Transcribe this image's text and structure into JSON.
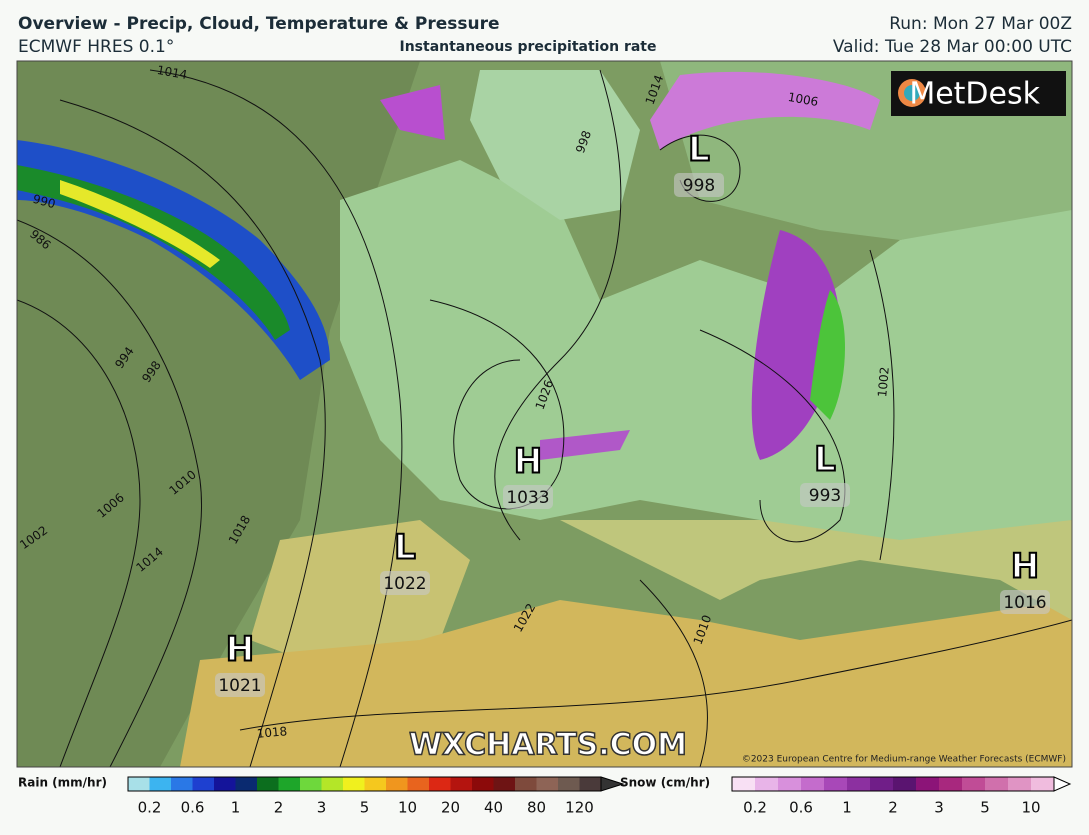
{
  "header": {
    "title": "Overview - Precip, Cloud, Temperature & Pressure",
    "model": "ECMWF HRES 0.1°",
    "product": "Instantaneous precipitation rate",
    "run": "Run: Mon 27 Mar 00Z",
    "valid": "Valid: Tue 28 Mar 00:00 UTC"
  },
  "map": {
    "logo": "MetDesk",
    "watermark": "WXCHARTS.COM",
    "copyright": "©2023 European Centre for Medium-range Weather Forecasts (ECMWF)",
    "pressure_centers": [
      {
        "kind": "L",
        "value": 998
      },
      {
        "kind": "H",
        "value": 1033
      },
      {
        "kind": "L",
        "value": 993
      },
      {
        "kind": "L",
        "value": 1022
      },
      {
        "kind": "H",
        "value": 1016
      },
      {
        "kind": "H",
        "value": 1021
      }
    ],
    "isobar_labels": [
      1014,
      1006,
      1014,
      998,
      990,
      986,
      994,
      998,
      1006,
      1010,
      1014,
      1018,
      1002,
      1026,
      1022,
      1010,
      1002,
      1018
    ]
  },
  "legend": {
    "rain": {
      "title": "Rain (mm/hr)",
      "ticks": [
        0.2,
        0.6,
        1,
        2,
        3,
        5,
        10,
        20,
        40,
        80,
        120
      ]
    },
    "snow": {
      "title": "Snow (cm/hr)",
      "ticks": [
        0.2,
        0.6,
        1,
        2,
        3,
        5,
        10
      ]
    }
  }
}
